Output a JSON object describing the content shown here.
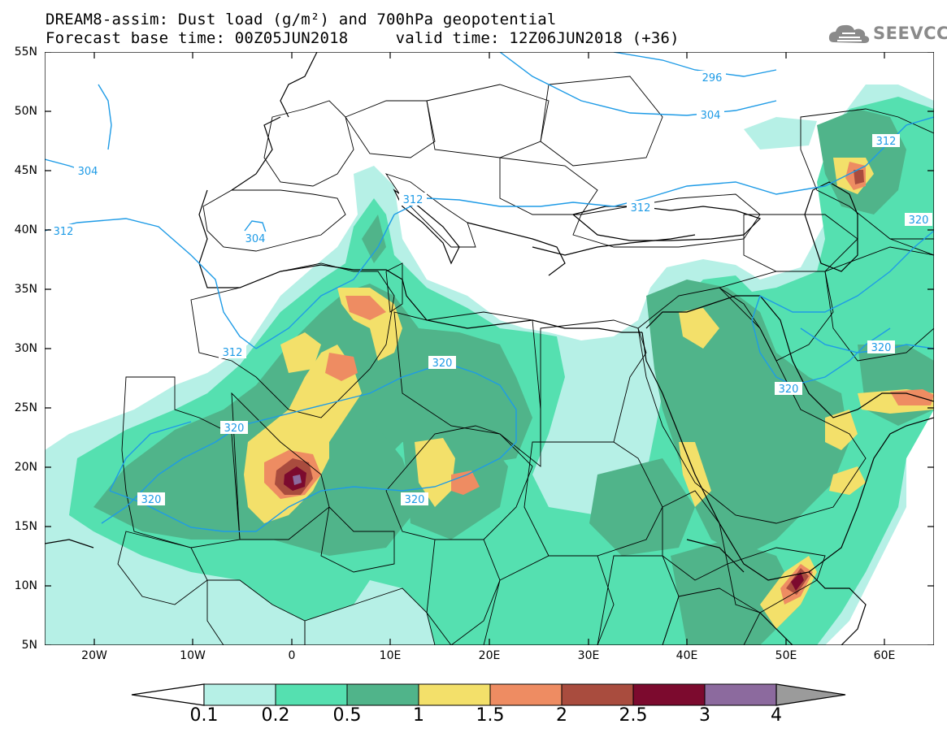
{
  "title": {
    "line1": "DREAM8-assim: Dust load (g/m²) and 700hPa geopotential",
    "line2": "Forecast base time: 00Z05JUN2018     valid time: 12Z06JUN2018 (+36)"
  },
  "logo": {
    "text": "SEEVCCC",
    "icon": "cloud-icon",
    "color": "#8a8a8a"
  },
  "map": {
    "lat_labels": [
      "55N",
      "50N",
      "45N",
      "40N",
      "35N",
      "30N",
      "25N",
      "20N",
      "15N",
      "10N",
      "5N"
    ],
    "lon_labels": [
      "20W",
      "10W",
      "0",
      "10E",
      "20E",
      "30E",
      "40E",
      "50E",
      "60E"
    ],
    "extent": {
      "lon_min": -25,
      "lon_max": 65,
      "lat_min": 5,
      "lat_max": 55
    },
    "contour_labels": [
      "296",
      "304",
      "304",
      "304",
      "312",
      "312",
      "312",
      "312",
      "312",
      "320",
      "320",
      "320",
      "320",
      "320",
      "320",
      "320"
    ]
  },
  "colorbar": {
    "levels": [
      "0.1",
      "0.2",
      "0.5",
      "1",
      "1.5",
      "2",
      "2.5",
      "3",
      "4"
    ],
    "colors": [
      "#ffffff",
      "#b6f0e6",
      "#55e0b0",
      "#50b48a",
      "#f3e06a",
      "#ee8c62",
      "#a94c3e",
      "#7c0a2e",
      "#8c6a9e",
      "#9b9b9b"
    ]
  }
}
